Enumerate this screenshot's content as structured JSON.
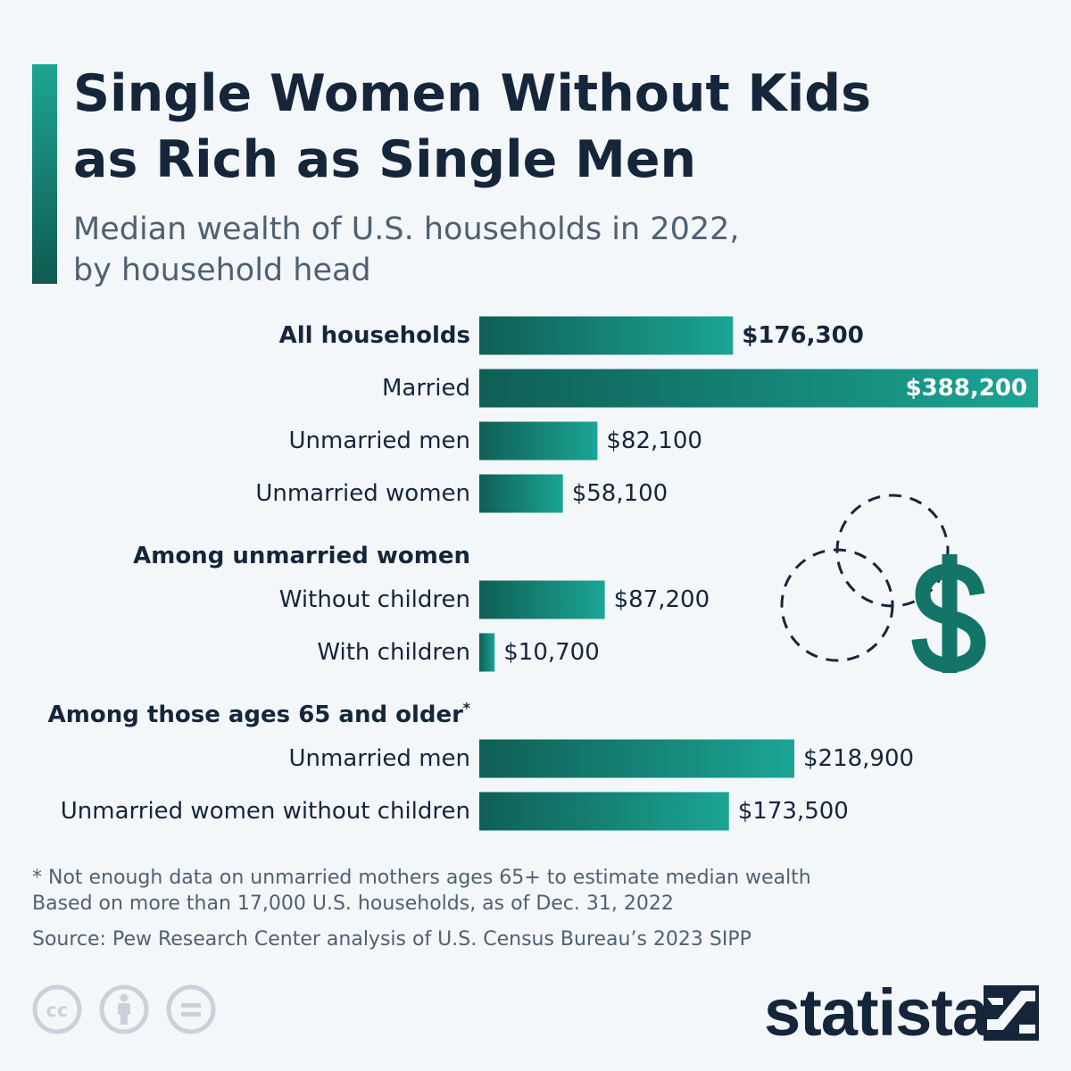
{
  "title_lines": [
    "Single Women Without Kids",
    "as Rich as Single Men"
  ],
  "subtitle_lines": [
    "Median wealth of U.S. households in 2022,",
    "by household head"
  ],
  "colors": {
    "bar_dark": "#0f5f55",
    "bar_light": "#1ba595",
    "accent": "#127868",
    "text_dark": "#15263b",
    "text_muted": "#4f6172"
  },
  "chart_data": {
    "type": "bar",
    "orientation": "horizontal",
    "groups": [
      {
        "heading": "",
        "items": [
          {
            "category": "All households",
            "value": 176300,
            "label": "$176,300",
            "bold": true
          },
          {
            "category": "Married",
            "value": 388200,
            "label": "$388,200",
            "label_inside": true
          },
          {
            "category": "Unmarried men",
            "value": 82100,
            "label": "$82,100"
          },
          {
            "category": "Unmarried women",
            "value": 58100,
            "label": "$58,100"
          }
        ]
      },
      {
        "heading": "Among unmarried women",
        "items": [
          {
            "category": "Without children",
            "value": 87200,
            "label": "$87,200"
          },
          {
            "category": "With children",
            "value": 10700,
            "label": "$10,700"
          }
        ]
      },
      {
        "heading": "Among those ages 65 and older",
        "heading_mark": "*",
        "items": [
          {
            "category": "Unmarried men",
            "value": 218900,
            "label": "$218,900"
          },
          {
            "category": "Unmarried women without children",
            "value": 173500,
            "label": "$173,500"
          }
        ]
      }
    ],
    "xlim": [
      0,
      388200
    ],
    "grid": false,
    "legend": "none"
  },
  "footnote_lines": [
    "* Not enough data on unmarried mothers ages 65+ to estimate median wealth",
    "Based on more than 17,000 U.S. households, as of Dec. 31, 2022"
  ],
  "source": "Source: Pew Research Center analysis of U.S. Census Bureau’s 2023 SIPP",
  "license_icons": [
    "creative-commons-icon",
    "attribution-icon",
    "no-derivatives-icon"
  ],
  "decoration_icons": [
    "dashed-coins-icon",
    "dollar-sign-icon"
  ],
  "brand": {
    "name": "statista"
  }
}
